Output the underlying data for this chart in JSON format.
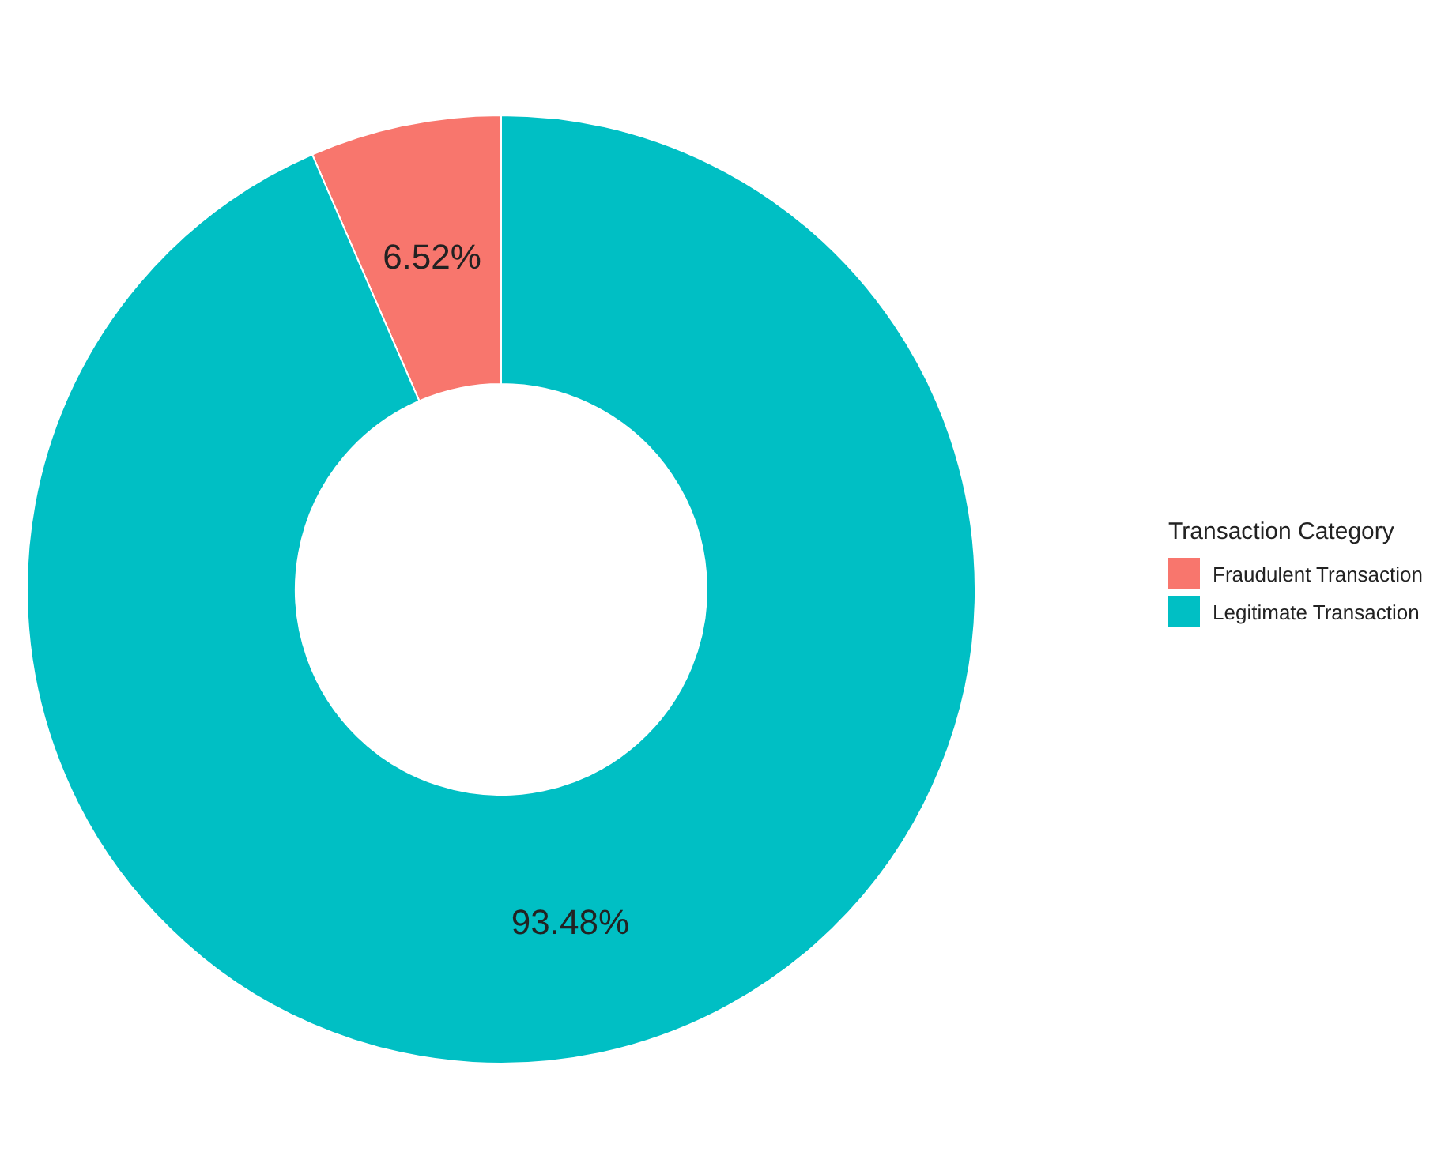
{
  "chart_data": {
    "type": "donut",
    "legend_title": "Transaction Category",
    "categories": [
      "Fraudulent Transaction",
      "Legitimate Transaction"
    ],
    "values": [
      6.52,
      93.48
    ],
    "colors": [
      "#f8766d",
      "#00bfc4"
    ],
    "value_labels": [
      "6.52%",
      "93.48%"
    ],
    "legend": "right"
  }
}
